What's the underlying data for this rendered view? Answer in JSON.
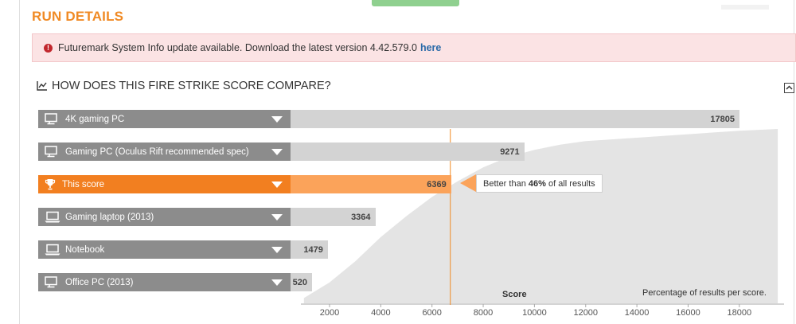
{
  "page": {
    "title": "RUN DETAILS"
  },
  "alert": {
    "message": "Futuremark System Info update available. Download the latest version 4.42.579.0",
    "link_text": "here"
  },
  "section": {
    "title": "HOW DOES THIS FIRE STRIKE SCORE COMPARE?"
  },
  "colors": {
    "accent": "#f08a24",
    "highlight_bar": "#fba35a",
    "highlight_label": "#f27f20",
    "label_bg": "#8c8c8c",
    "bar_bg": "#d3d3d3",
    "distribution": "#e4e4e4"
  },
  "icons": {
    "alert": "exclamation-circle-icon",
    "section": "line-chart-icon",
    "collapse": "minus-square-icon",
    "desktop": "monitor-icon",
    "laptop": "laptop-icon",
    "trophy": "trophy-icon"
  },
  "chart_data": {
    "type": "bar",
    "xlabel": "Score",
    "xlim": [
      1000,
      20000
    ],
    "x_ticks": [
      2000,
      4000,
      6000,
      8000,
      10000,
      12000,
      14000,
      16000,
      18000
    ],
    "annotation": "Percentage of results per score.",
    "categories": [
      "4K gaming PC",
      "Gaming PC (Oculus Rift recommended spec)",
      "This score",
      "Gaming laptop (2013)",
      "Notebook",
      "Office PC (2013)"
    ],
    "values": [
      17805,
      9271,
      6369,
      3364,
      1479,
      520
    ],
    "highlight_index": 2,
    "highlight_callout": {
      "prefix": "Better than",
      "percent": "46%",
      "suffix": "of all results"
    },
    "distribution_curve": {
      "x": [
        1000,
        2000,
        3000,
        4000,
        5000,
        6000,
        7000,
        8000,
        9000,
        10000,
        11000,
        12000,
        14000,
        16000,
        18000,
        19500
      ],
      "y": [
        3,
        12,
        24,
        38,
        50,
        61,
        70,
        78,
        84,
        88,
        91,
        93,
        95,
        97,
        99,
        100
      ]
    }
  }
}
